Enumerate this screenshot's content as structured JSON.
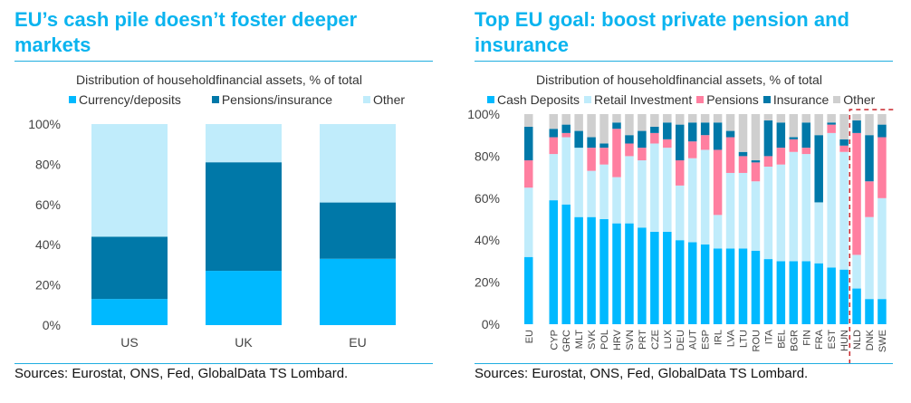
{
  "left": {
    "title": "EU’s cash pile doesn’t foster deeper markets",
    "source": "Sources: Eurostat, ONS, Fed, GlobalData TS Lombard.",
    "chart_data": {
      "type": "bar",
      "stacked": true,
      "title": "Distribution of householdfinancial assets, % of total",
      "categories": [
        "US",
        "UK",
        "EU"
      ],
      "series": [
        {
          "name": "Currency/deposits",
          "color": "#00b9ff",
          "values": [
            13,
            27,
            33
          ]
        },
        {
          "name": "Pensions/insurance",
          "color": "#0078a8",
          "values": [
            31,
            54,
            28
          ]
        },
        {
          "name": "Other",
          "color": "#c0ecfb",
          "values": [
            56,
            19,
            39
          ]
        }
      ],
      "yticks": [
        "0%",
        "20%",
        "40%",
        "60%",
        "80%",
        "100%"
      ],
      "ylim": [
        0,
        100
      ],
      "xlabel": "",
      "ylabel": "",
      "grid": false,
      "legend": "top-center"
    }
  },
  "right": {
    "title": "Top EU goal: boost private pension and insurance",
    "source": "Sources: Eurostat, ONS, Fed, GlobalData TS Lombard.",
    "chart_data": {
      "type": "bar",
      "stacked": true,
      "title": "Distribution of householdfinancial assets, % of total",
      "categories": [
        "EU",
        "CYP",
        "GRC",
        "MLT",
        "SVK",
        "POL",
        "HRV",
        "SVN",
        "PRT",
        "CZE",
        "LUX",
        "DEU",
        "AUT",
        "ESP",
        "IRL",
        "LVA",
        "LTU",
        "ROU",
        "ITA",
        "BEL",
        "BGR",
        "FIN",
        "FRA",
        "EST",
        "HUN",
        "NLD",
        "DNK",
        "SWE"
      ],
      "series": [
        {
          "name": "Cash Deposits",
          "color": "#00b9ff",
          "values": [
            32,
            59,
            57,
            51,
            51,
            50,
            48,
            48,
            46,
            44,
            44,
            40,
            39,
            38,
            36,
            36,
            36,
            35,
            31,
            30,
            30,
            30,
            29,
            27,
            26,
            17,
            12,
            12
          ]
        },
        {
          "name": "Retail Investment",
          "color": "#c0ecfb",
          "values": [
            33,
            22,
            32,
            33,
            22,
            26,
            22,
            32,
            32,
            42,
            40,
            26,
            40,
            45,
            16,
            36,
            36,
            33,
            44,
            46,
            52,
            51,
            29,
            64,
            56,
            16,
            39,
            48
          ]
        },
        {
          "name": "Pensions",
          "color": "#ff7fa0",
          "values": [
            13,
            8,
            2,
            0,
            11,
            8,
            23,
            6,
            6,
            5,
            4,
            12,
            8,
            7,
            31,
            17,
            8,
            9,
            5,
            8,
            6,
            3,
            0,
            4,
            3,
            58,
            17,
            29
          ]
        },
        {
          "name": "Insurance",
          "color": "#0078a8",
          "values": [
            16,
            4,
            4,
            8,
            5,
            2,
            3,
            4,
            8,
            3,
            8,
            17,
            9,
            6,
            13,
            3,
            2,
            1,
            17,
            12,
            1,
            12,
            32,
            1,
            3,
            6,
            22,
            6
          ]
        },
        {
          "name": "Other",
          "color": "#cfcfcf",
          "values": [
            6,
            7,
            5,
            8,
            11,
            14,
            4,
            10,
            8,
            6,
            4,
            5,
            4,
            4,
            4,
            8,
            18,
            22,
            3,
            4,
            11,
            4,
            10,
            4,
            12,
            3,
            10,
            5
          ]
        }
      ],
      "yticks": [
        "0%",
        "20%",
        "40%",
        "60%",
        "80%",
        "100%"
      ],
      "ylim": [
        0,
        100
      ],
      "highlight": {
        "categories": [
          "NLD",
          "DNK",
          "SWE"
        ],
        "style": "red dashed box"
      },
      "xlabel": "",
      "ylabel": "",
      "grid": false,
      "legend": "top-center"
    }
  }
}
